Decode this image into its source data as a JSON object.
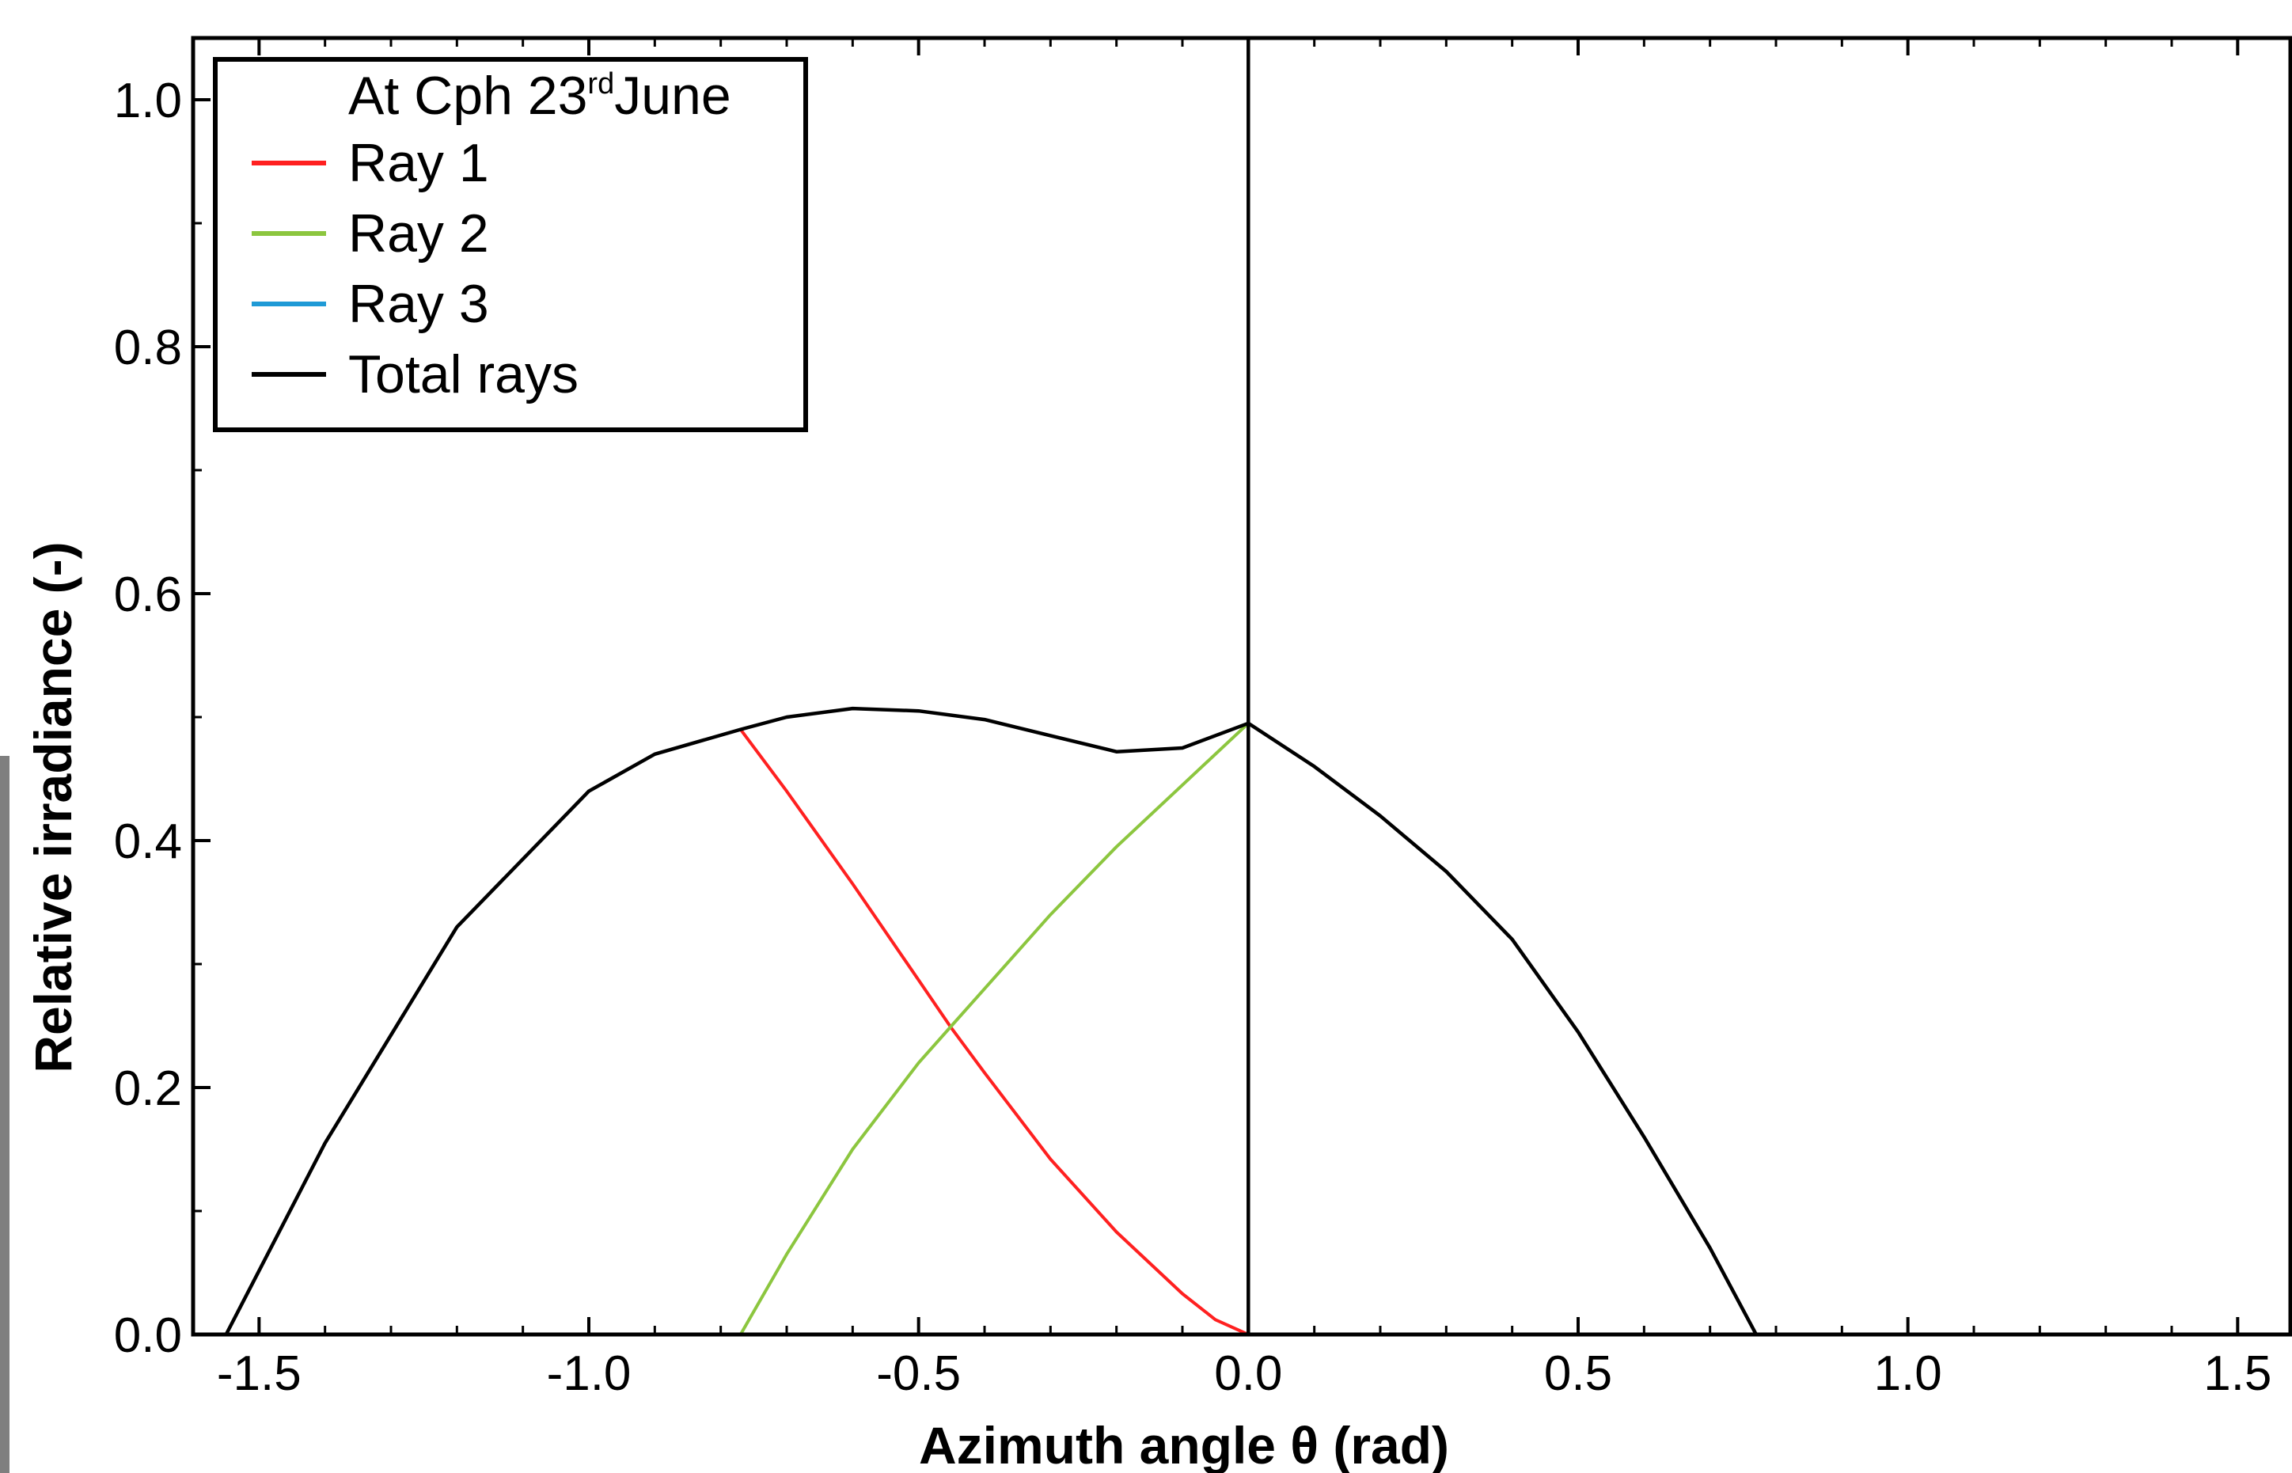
{
  "chart_data": {
    "type": "line",
    "xlabel": "Azimuth angle θ  (rad)",
    "ylabel": "Relative irradiance (-)",
    "xlim": [
      -1.6,
      1.58
    ],
    "ylim": [
      0.0,
      1.05
    ],
    "xticks": [
      "-1.5",
      "-1.0",
      "-0.5",
      "0.0",
      "0.5",
      "1.0",
      "1.5"
    ],
    "xtick_values": [
      -1.5,
      -1.0,
      -0.5,
      0.0,
      0.5,
      1.0,
      1.5
    ],
    "yticks": [
      "0.0",
      "0.2",
      "0.4",
      "0.6",
      "0.8",
      "1.0"
    ],
    "ytick_values": [
      0.0,
      0.2,
      0.4,
      0.6,
      0.8,
      1.0
    ],
    "grid": false,
    "legend": {
      "placement": "top-left",
      "title_main": "At Cph 23",
      "title_sup": "rd",
      "title_end": "June"
    },
    "series": [
      {
        "name": "Ray 1",
        "color": "#ff2020",
        "x": [
          -0.77,
          -0.7,
          -0.6,
          -0.5,
          -0.45,
          -0.4,
          -0.3,
          -0.2,
          -0.1,
          -0.05,
          0.0
        ],
        "y": [
          0.49,
          0.44,
          0.365,
          0.287,
          0.248,
          0.212,
          0.142,
          0.083,
          0.033,
          0.012,
          0.0
        ]
      },
      {
        "name": "Ray 2",
        "color": "#8cc63f",
        "x": [
          -1.55,
          -0.77,
          -0.7,
          -0.6,
          -0.5,
          -0.45,
          -0.4,
          -0.3,
          -0.2,
          -0.1,
          0.0
        ],
        "y": [
          0.0,
          0.0,
          0.065,
          0.15,
          0.22,
          0.25,
          0.28,
          0.34,
          0.395,
          0.445,
          0.495
        ]
      },
      {
        "name": "Ray 3",
        "color": "#1f9ad6",
        "x": [
          -1.55,
          1.55
        ],
        "y": [
          0.0,
          0.0
        ]
      },
      {
        "name": "Total rays",
        "color": "#000000",
        "x": [
          -1.55,
          -1.4,
          -1.2,
          -1.0,
          -0.9,
          -0.77,
          -0.7,
          -0.6,
          -0.5,
          -0.4,
          -0.3,
          -0.2,
          -0.1,
          0.0,
          0.1,
          0.2,
          0.3,
          0.4,
          0.5,
          0.6,
          0.7,
          0.77
        ],
        "y": [
          0.0,
          0.155,
          0.33,
          0.44,
          0.47,
          0.49,
          0.5,
          0.507,
          0.505,
          0.498,
          0.485,
          0.472,
          0.475,
          0.495,
          0.46,
          0.42,
          0.375,
          0.32,
          0.245,
          0.16,
          0.07,
          0.0
        ]
      },
      {
        "name": "Total rays",
        "color": "#000000",
        "x": [
          0.0,
          0.0
        ],
        "y": [
          0.0,
          1.05
        ]
      }
    ]
  }
}
